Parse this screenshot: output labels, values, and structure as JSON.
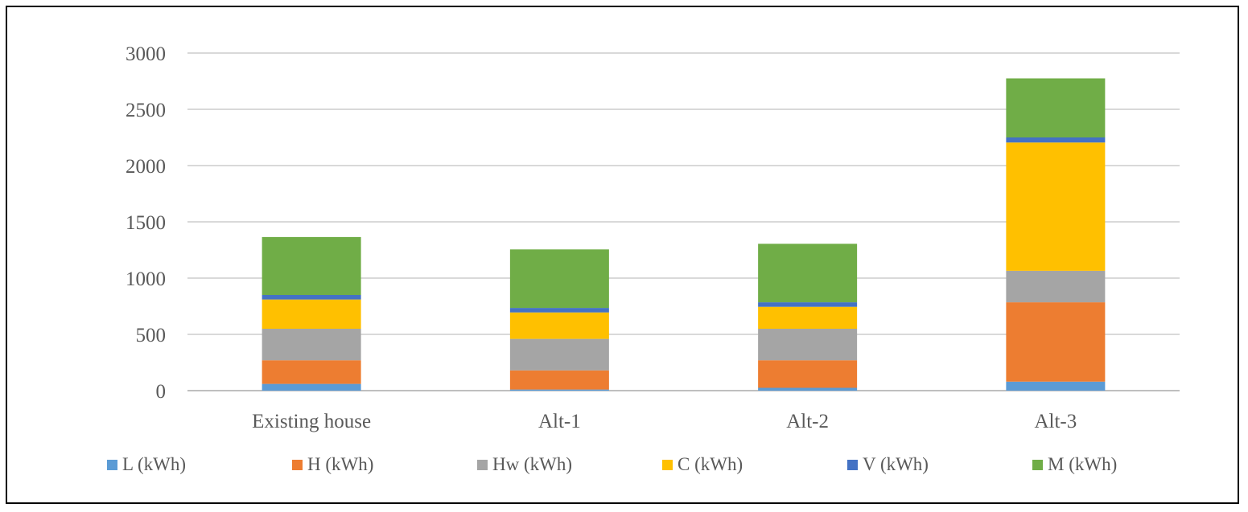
{
  "chart_data": {
    "type": "bar",
    "stacked": true,
    "categories": [
      "Existing house",
      "Alt-1",
      "Alt-2",
      "Alt-3"
    ],
    "ylim": [
      0,
      3000
    ],
    "yticks": [
      0,
      500,
      1000,
      1500,
      2000,
      2500,
      3000
    ],
    "grid": true,
    "legend_position": "bottom",
    "series": [
      {
        "name": "L (kWh)",
        "color": "#5B9BD5",
        "values": [
          60,
          10,
          25,
          80
        ]
      },
      {
        "name": "H (kWh)",
        "color": "#ED7D31",
        "values": [
          210,
          170,
          245,
          705
        ]
      },
      {
        "name": "Hw (kWh)",
        "color": "#A5A5A5",
        "values": [
          280,
          280,
          280,
          280
        ]
      },
      {
        "name": "C (kWh)",
        "color": "#FFC000",
        "values": [
          260,
          235,
          195,
          1140
        ]
      },
      {
        "name": "V (kWh)",
        "color": "#4472C4",
        "values": [
          40,
          40,
          40,
          45
        ]
      },
      {
        "name": "M (kWh)",
        "color": "#70AD47",
        "values": [
          515,
          520,
          520,
          525
        ]
      }
    ]
  }
}
